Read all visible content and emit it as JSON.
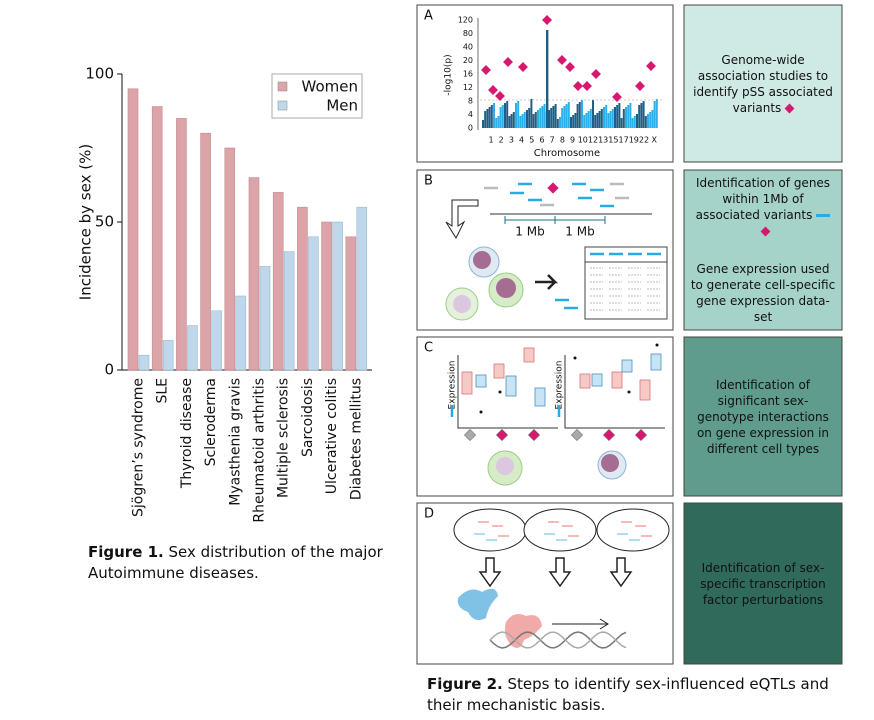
{
  "chart_data": {
    "type": "bar",
    "ylabel": "Incidence by sex (%)",
    "categories": [
      "Sjögren’s syndrome",
      "SLE",
      "Thyroid disease",
      "Scleroderma",
      "Myasthenia gravis",
      "Rheumatoid arthritis",
      "Multiple sclerosis",
      "Sarcoidosis",
      "Ulcerative colitis",
      "Diabetes mellitus"
    ],
    "series": [
      {
        "name": "Women",
        "color": "#dba4a8",
        "values": [
          95,
          89,
          85,
          80,
          75,
          65,
          60,
          55,
          50,
          45
        ]
      },
      {
        "name": "Men",
        "color": "#bed7ea",
        "values": [
          5,
          10,
          15,
          20,
          25,
          35,
          40,
          45,
          50,
          55
        ]
      }
    ],
    "ylim": [
      0,
      100
    ],
    "yticks": [
      0,
      50,
      100
    ],
    "legend": "upper right"
  },
  "figure1_caption": {
    "label": "Figure 1.",
    "text": "Sex distribution of the major Autoimmune diseases."
  },
  "figure2": {
    "panels": [
      {
        "letter": "A",
        "yaxis_label": "-log10(p)",
        "yticks": [
          120,
          80,
          40,
          20,
          16,
          12,
          8,
          4,
          0
        ],
        "xticks": [
          "1",
          "2",
          "3",
          "4",
          "5",
          "6",
          "7",
          "8",
          "9",
          "10",
          "12",
          "13",
          "15",
          "17",
          "19",
          "22",
          "X"
        ],
        "xaxis_label": "Chromosome",
        "description": "Genome-wide association studies to identify pSS associated variants"
      },
      {
        "letter": "B",
        "scale_labels": [
          "1 Mb",
          "1 Mb"
        ],
        "description": [
          "Identification of genes within 1Mb of associated variants",
          "Gene expression used to generate cell-specific gene expression data-set"
        ]
      },
      {
        "letter": "C",
        "axis_labels": [
          "Expression",
          "Expression"
        ],
        "description": "Identification of significant sex-genotype interactions on gene expression in different cell types"
      },
      {
        "letter": "D",
        "description": "Identification of sex-specific transcription factor perturbations"
      }
    ],
    "caption": {
      "label": "Figure 2.",
      "text": "Steps to identify sex-influenced eQTLs and their mechanistic basis."
    }
  }
}
